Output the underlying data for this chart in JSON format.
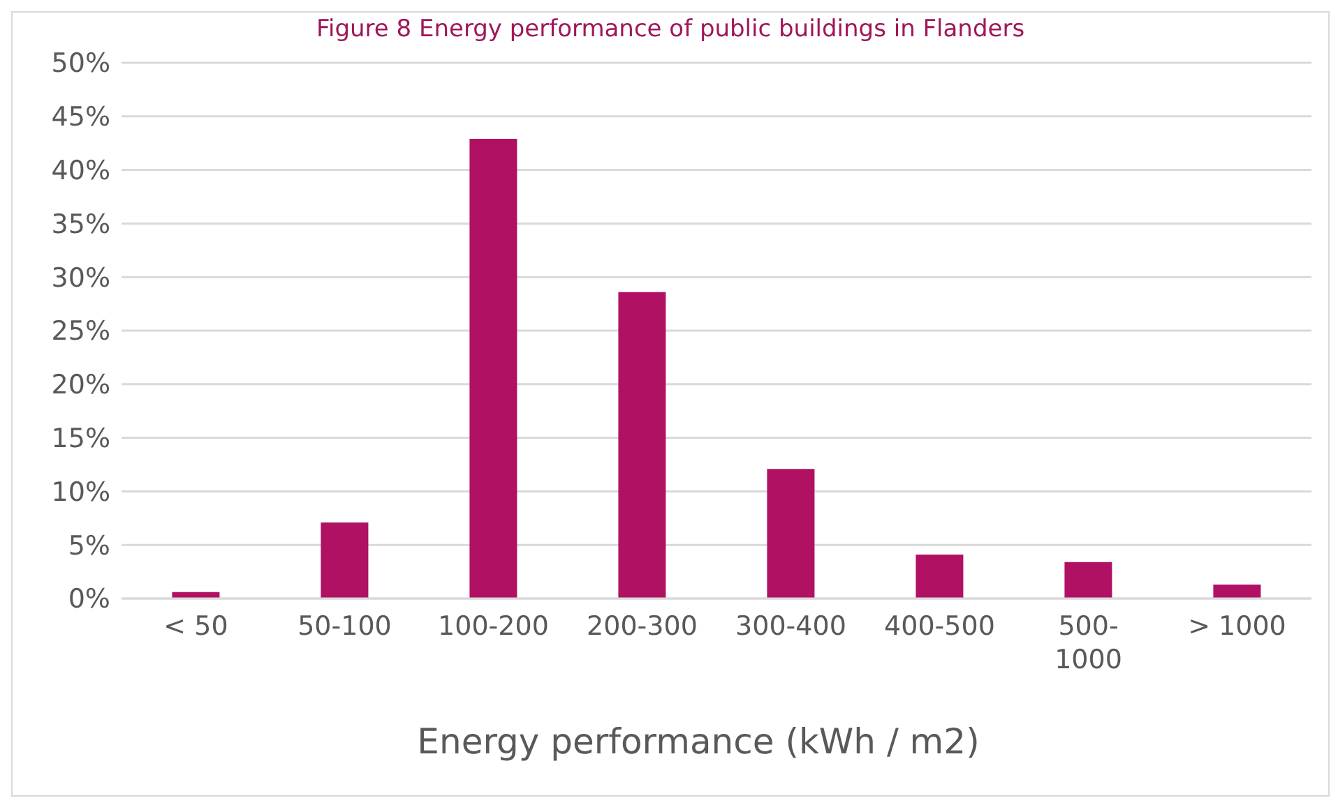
{
  "chart_data": {
    "type": "bar",
    "title": "Figure 8 Energy performance of public buildings in Flanders",
    "xlabel": "Energy performance (kWh / m2)",
    "categories": [
      "< 50",
      "50-100",
      "100-200",
      "200-300",
      "300-400",
      "400-500",
      "500-1000",
      "> 1000"
    ],
    "values": [
      0.6,
      7.1,
      42.9,
      28.6,
      12.1,
      4.1,
      3.4,
      1.3
    ],
    "color": "#b01163",
    "ylim": [
      0,
      50
    ],
    "yticks": [
      {
        "value": 0,
        "label": "0%"
      },
      {
        "value": 5,
        "label": "5%"
      },
      {
        "value": 10,
        "label": "10%"
      },
      {
        "value": 15,
        "label": "15%"
      },
      {
        "value": 20,
        "label": "20%"
      },
      {
        "value": 25,
        "label": "25%"
      },
      {
        "value": 30,
        "label": "30%"
      },
      {
        "value": 35,
        "label": "35%"
      },
      {
        "value": 40,
        "label": "40%"
      },
      {
        "value": 45,
        "label": "45%"
      },
      {
        "value": 50,
        "label": "50%"
      }
    ],
    "grid": "y",
    "legend": false
  }
}
